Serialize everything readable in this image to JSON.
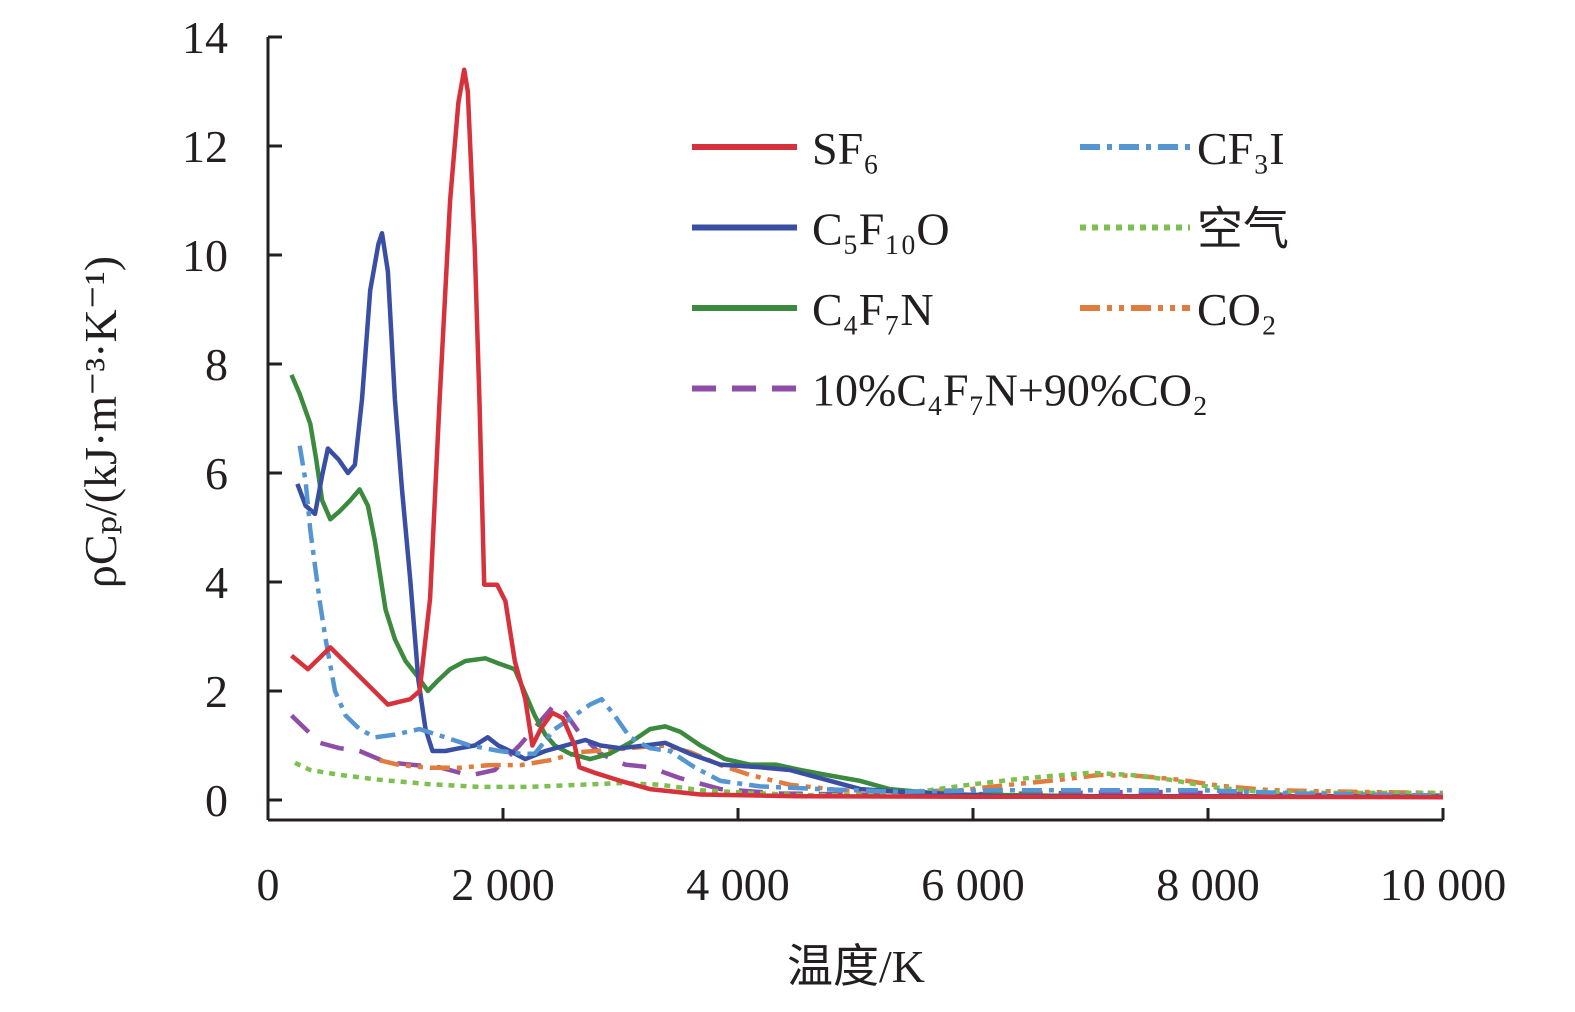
{
  "chart_data": {
    "type": "line",
    "xlabel": "温度/K",
    "ylabel": "ρCₚ/(kJ·m⁻³·K⁻¹)",
    "xlim": [
      0,
      10000
    ],
    "ylim": [
      0,
      14
    ],
    "xticks": [
      0,
      2000,
      4000,
      6000,
      8000,
      10000
    ],
    "xtick_labels": [
      "0",
      "2 000",
      "4 000",
      "6 000",
      "8 000",
      "10 000"
    ],
    "yticks": [
      0,
      2,
      4,
      6,
      8,
      10,
      12,
      14
    ],
    "ytick_labels": [
      "0",
      "2",
      "4",
      "6",
      "8",
      "10",
      "12",
      "14"
    ],
    "grid": false,
    "legend_position": "top-right",
    "series": [
      {
        "name": "SF₆",
        "color": "#d7323c",
        "line_style": "solid",
        "points": [
          [
            200,
            2.65
          ],
          [
            340,
            2.4
          ],
          [
            530,
            2.8
          ],
          [
            1020,
            1.75
          ],
          [
            1210,
            1.85
          ],
          [
            1290,
            2.0
          ],
          [
            1380,
            3.7
          ],
          [
            1460,
            7.3
          ],
          [
            1550,
            11.0
          ],
          [
            1620,
            12.8
          ],
          [
            1670,
            13.4
          ],
          [
            1700,
            13.0
          ],
          [
            1760,
            10.1
          ],
          [
            1800,
            7.3
          ],
          [
            1840,
            3.95
          ],
          [
            1950,
            3.95
          ],
          [
            2020,
            3.65
          ],
          [
            2100,
            2.55
          ],
          [
            2190,
            1.85
          ],
          [
            2250,
            1.0
          ],
          [
            2320,
            1.3
          ],
          [
            2420,
            1.6
          ],
          [
            2510,
            1.5
          ],
          [
            2610,
            1.0
          ],
          [
            2650,
            0.6
          ],
          [
            2780,
            0.5
          ],
          [
            3000,
            0.35
          ],
          [
            3250,
            0.2
          ],
          [
            3680,
            0.1
          ],
          [
            4500,
            0.07
          ],
          [
            6000,
            0.06
          ],
          [
            8000,
            0.06
          ],
          [
            10000,
            0.05
          ]
        ]
      },
      {
        "name": "CF₃I",
        "color": "#5596d2",
        "line_style": "dash-dot",
        "points": [
          [
            270,
            6.5
          ],
          [
            320,
            5.85
          ],
          [
            360,
            4.95
          ],
          [
            400,
            4.3
          ],
          [
            440,
            3.65
          ],
          [
            490,
            2.95
          ],
          [
            570,
            2.0
          ],
          [
            660,
            1.55
          ],
          [
            780,
            1.3
          ],
          [
            910,
            1.15
          ],
          [
            1080,
            1.2
          ],
          [
            1290,
            1.3
          ],
          [
            1510,
            1.15
          ],
          [
            1720,
            1.0
          ],
          [
            1970,
            0.9
          ],
          [
            2150,
            0.85
          ],
          [
            2270,
            0.85
          ],
          [
            2440,
            1.3
          ],
          [
            2610,
            1.55
          ],
          [
            2740,
            1.75
          ],
          [
            2840,
            1.85
          ],
          [
            2950,
            1.55
          ],
          [
            3080,
            1.15
          ],
          [
            3250,
            0.95
          ],
          [
            3420,
            0.9
          ],
          [
            3630,
            0.6
          ],
          [
            3850,
            0.35
          ],
          [
            4190,
            0.25
          ],
          [
            4700,
            0.2
          ],
          [
            5380,
            0.15
          ],
          [
            6230,
            0.18
          ],
          [
            7080,
            0.18
          ],
          [
            7930,
            0.18
          ],
          [
            8780,
            0.12
          ],
          [
            10000,
            0.08
          ]
        ]
      },
      {
        "name": "C₅F₁₀O",
        "color": "#3a4fa3",
        "line_style": "solid",
        "points": [
          [
            250,
            5.8
          ],
          [
            320,
            5.4
          ],
          [
            400,
            5.25
          ],
          [
            460,
            5.95
          ],
          [
            510,
            6.45
          ],
          [
            600,
            6.25
          ],
          [
            680,
            6.0
          ],
          [
            740,
            6.15
          ],
          [
            800,
            7.35
          ],
          [
            870,
            9.35
          ],
          [
            940,
            10.2
          ],
          [
            970,
            10.4
          ],
          [
            1020,
            9.7
          ],
          [
            1080,
            7.35
          ],
          [
            1140,
            5.7
          ],
          [
            1210,
            4.05
          ],
          [
            1280,
            2.2
          ],
          [
            1340,
            1.3
          ],
          [
            1400,
            0.9
          ],
          [
            1510,
            0.9
          ],
          [
            1630,
            0.95
          ],
          [
            1760,
            1.0
          ],
          [
            1870,
            1.15
          ],
          [
            1960,
            1.0
          ],
          [
            2060,
            0.9
          ],
          [
            2190,
            0.75
          ],
          [
            2360,
            0.9
          ],
          [
            2530,
            1.0
          ],
          [
            2700,
            1.1
          ],
          [
            2830,
            1.0
          ],
          [
            3000,
            0.95
          ],
          [
            3210,
            1.0
          ],
          [
            3380,
            1.05
          ],
          [
            3590,
            0.85
          ],
          [
            3850,
            0.65
          ],
          [
            4190,
            0.6
          ],
          [
            4440,
            0.55
          ],
          [
            4700,
            0.4
          ],
          [
            5040,
            0.2
          ],
          [
            5380,
            0.15
          ],
          [
            6230,
            0.07
          ],
          [
            8000,
            0.07
          ],
          [
            10000,
            0.06
          ]
        ]
      },
      {
        "name": "空气",
        "color": "#7cc04f",
        "line_style": "dotted",
        "points": [
          [
            230,
            0.68
          ],
          [
            360,
            0.55
          ],
          [
            610,
            0.46
          ],
          [
            950,
            0.37
          ],
          [
            1380,
            0.29
          ],
          [
            1800,
            0.24
          ],
          [
            2230,
            0.24
          ],
          [
            2660,
            0.28
          ],
          [
            3000,
            0.31
          ],
          [
            3340,
            0.28
          ],
          [
            3680,
            0.18
          ],
          [
            4100,
            0.13
          ],
          [
            4530,
            0.09
          ],
          [
            5120,
            0.09
          ],
          [
            5630,
            0.18
          ],
          [
            5970,
            0.28
          ],
          [
            6320,
            0.37
          ],
          [
            6660,
            0.44
          ],
          [
            7000,
            0.5
          ],
          [
            7340,
            0.46
          ],
          [
            7680,
            0.37
          ],
          [
            8020,
            0.24
          ],
          [
            8440,
            0.15
          ],
          [
            9040,
            0.13
          ],
          [
            10000,
            0.13
          ]
        ]
      },
      {
        "name": "C₄F₇N",
        "color": "#3b8a3d",
        "line_style": "solid",
        "points": [
          [
            200,
            7.8
          ],
          [
            270,
            7.45
          ],
          [
            360,
            6.9
          ],
          [
            410,
            6.25
          ],
          [
            460,
            5.5
          ],
          [
            530,
            5.15
          ],
          [
            610,
            5.3
          ],
          [
            700,
            5.5
          ],
          [
            780,
            5.7
          ],
          [
            850,
            5.4
          ],
          [
            910,
            4.75
          ],
          [
            1000,
            3.5
          ],
          [
            1080,
            2.95
          ],
          [
            1170,
            2.55
          ],
          [
            1280,
            2.25
          ],
          [
            1360,
            2.0
          ],
          [
            1450,
            2.2
          ],
          [
            1550,
            2.4
          ],
          [
            1680,
            2.55
          ],
          [
            1850,
            2.6
          ],
          [
            1970,
            2.5
          ],
          [
            2100,
            2.4
          ],
          [
            2190,
            1.95
          ],
          [
            2270,
            1.55
          ],
          [
            2360,
            1.2
          ],
          [
            2440,
            1.0
          ],
          [
            2570,
            0.85
          ],
          [
            2740,
            0.75
          ],
          [
            2910,
            0.85
          ],
          [
            3080,
            1.05
          ],
          [
            3250,
            1.3
          ],
          [
            3380,
            1.35
          ],
          [
            3510,
            1.25
          ],
          [
            3680,
            1.0
          ],
          [
            3890,
            0.75
          ],
          [
            4100,
            0.65
          ],
          [
            4320,
            0.65
          ],
          [
            4530,
            0.55
          ],
          [
            4780,
            0.45
          ],
          [
            5040,
            0.35
          ],
          [
            5290,
            0.2
          ],
          [
            5800,
            0.1
          ],
          [
            7080,
            0.07
          ],
          [
            10000,
            0.07
          ]
        ]
      },
      {
        "name": "CO₂",
        "color": "#e07c3e",
        "line_style": "dash-dot-dot",
        "points": [
          [
            950,
            0.73
          ],
          [
            1120,
            0.64
          ],
          [
            1380,
            0.59
          ],
          [
            1630,
            0.59
          ],
          [
            1890,
            0.64
          ],
          [
            2150,
            0.64
          ],
          [
            2400,
            0.73
          ],
          [
            2660,
            0.88
          ],
          [
            2910,
            0.92
          ],
          [
            3170,
            0.97
          ],
          [
            3380,
            1.0
          ],
          [
            3590,
            0.88
          ],
          [
            3850,
            0.64
          ],
          [
            4100,
            0.46
          ],
          [
            4440,
            0.28
          ],
          [
            4870,
            0.18
          ],
          [
            5380,
            0.15
          ],
          [
            5890,
            0.18
          ],
          [
            6320,
            0.28
          ],
          [
            6740,
            0.37
          ],
          [
            7080,
            0.46
          ],
          [
            7420,
            0.44
          ],
          [
            7760,
            0.37
          ],
          [
            8100,
            0.26
          ],
          [
            8530,
            0.18
          ],
          [
            9210,
            0.15
          ],
          [
            10000,
            0.13
          ]
        ]
      },
      {
        "name": "10%C₄F₇N+90%CO₂",
        "color": "#8e4ea8",
        "line_style": "dashed",
        "points": [
          [
            200,
            1.55
          ],
          [
            320,
            1.3
          ],
          [
            440,
            1.05
          ],
          [
            610,
            0.95
          ],
          [
            780,
            0.9
          ],
          [
            1000,
            0.7
          ],
          [
            1210,
            0.65
          ],
          [
            1460,
            0.6
          ],
          [
            1720,
            0.45
          ],
          [
            1930,
            0.55
          ],
          [
            2140,
            1.0
          ],
          [
            2320,
            1.45
          ],
          [
            2440,
            1.75
          ],
          [
            2530,
            1.6
          ],
          [
            2660,
            1.2
          ],
          [
            2830,
            0.85
          ],
          [
            3040,
            0.65
          ],
          [
            3250,
            0.6
          ],
          [
            3510,
            0.4
          ],
          [
            3850,
            0.2
          ],
          [
            4360,
            0.12
          ],
          [
            5380,
            0.09
          ],
          [
            6500,
            0.12
          ],
          [
            7500,
            0.15
          ],
          [
            8500,
            0.1
          ],
          [
            10000,
            0.08
          ]
        ]
      }
    ]
  }
}
